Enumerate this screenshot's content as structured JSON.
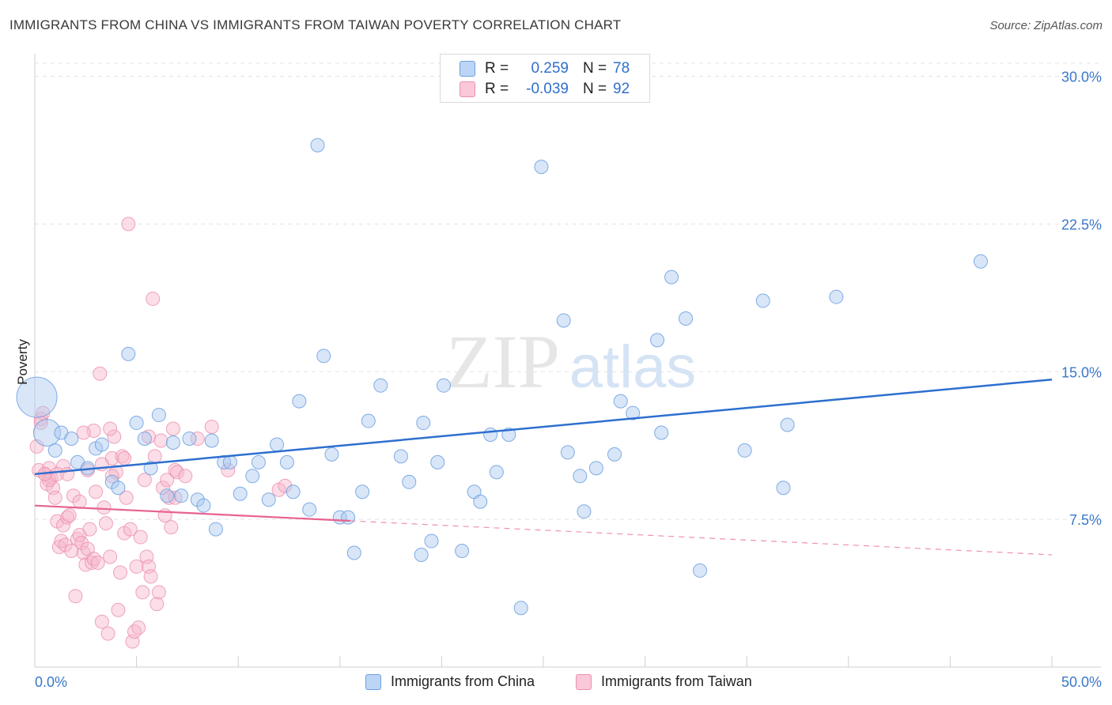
{
  "title": "IMMIGRANTS FROM CHINA VS IMMIGRANTS FROM TAIWAN POVERTY CORRELATION CHART",
  "source": "Source: ZipAtlas.com",
  "watermark": {
    "zip": "ZIP",
    "atlas": "atlas"
  },
  "legend": {
    "rows": [
      {
        "r_label": "R =",
        "r_value": "0.259",
        "n_label": "N =",
        "n_value": "78"
      },
      {
        "r_label": "R =",
        "r_value": "-0.039",
        "n_label": "N =",
        "n_value": "92"
      }
    ]
  },
  "bottom_legend": [
    "Immigrants from China",
    "Immigrants from Taiwan"
  ],
  "colors": {
    "china_fill": "#a9c8f0",
    "china_stroke": "#6c9fe0",
    "china_line": "#2d6fd0",
    "taiwan_fill": "#f6b6ca",
    "taiwan_stroke": "#ec8fae",
    "taiwan_line": "#e8618f",
    "grid": "#e3e3e3",
    "tick_text": "#3b78c9"
  },
  "chart_data": {
    "type": "scatter",
    "ylabel": "Poverty",
    "xlim": [
      0,
      50
    ],
    "ylim": [
      0,
      30
    ],
    "x_tick_labels": [
      "0.0%",
      "50.0%"
    ],
    "y_ticks": [
      7.5,
      15.0,
      22.5,
      30.0
    ],
    "y_tick_labels": [
      "7.5%",
      "15.0%",
      "22.5%",
      "30.0%"
    ],
    "grid": true,
    "series": [
      {
        "name": "Immigrants from China",
        "trend": {
          "x": [
            0,
            50
          ],
          "y": [
            9.8,
            14.6
          ],
          "dashed_after": null
        },
        "points": [
          [
            0.1,
            13.7,
            3
          ],
          [
            0.6,
            11.9,
            2
          ],
          [
            1.0,
            11.0,
            1
          ],
          [
            1.3,
            11.9,
            1
          ],
          [
            1.8,
            11.6,
            1
          ],
          [
            2.1,
            10.4,
            1
          ],
          [
            2.6,
            10.1,
            1
          ],
          [
            3.0,
            11.1,
            1
          ],
          [
            3.3,
            11.3,
            1
          ],
          [
            3.8,
            9.4,
            1
          ],
          [
            4.1,
            9.1,
            1
          ],
          [
            4.6,
            15.9,
            1
          ],
          [
            5.0,
            12.4,
            1
          ],
          [
            5.4,
            11.6,
            1
          ],
          [
            5.7,
            10.1,
            1
          ],
          [
            6.1,
            12.8,
            1
          ],
          [
            6.5,
            8.7,
            1
          ],
          [
            6.8,
            11.4,
            1
          ],
          [
            7.2,
            8.7,
            1
          ],
          [
            7.6,
            11.6,
            1
          ],
          [
            8.0,
            8.5,
            1
          ],
          [
            8.3,
            8.2,
            1
          ],
          [
            8.7,
            11.5,
            1
          ],
          [
            8.9,
            7.0,
            1
          ],
          [
            9.3,
            10.4,
            1
          ],
          [
            9.6,
            10.4,
            1
          ],
          [
            10.1,
            8.8,
            1
          ],
          [
            10.7,
            9.7,
            1
          ],
          [
            11.0,
            10.4,
            1
          ],
          [
            11.5,
            8.5,
            1
          ],
          [
            11.9,
            11.3,
            1
          ],
          [
            12.4,
            10.4,
            1
          ],
          [
            12.7,
            8.9,
            1
          ],
          [
            13.0,
            13.5,
            1
          ],
          [
            13.5,
            8.0,
            1
          ],
          [
            13.9,
            26.5,
            1
          ],
          [
            14.2,
            15.8,
            1
          ],
          [
            14.6,
            10.8,
            1
          ],
          [
            15.0,
            7.6,
            1
          ],
          [
            15.4,
            7.6,
            1
          ],
          [
            15.7,
            5.8,
            1
          ],
          [
            16.1,
            8.9,
            1
          ],
          [
            16.4,
            12.5,
            1
          ],
          [
            17.0,
            14.3,
            1
          ],
          [
            18.0,
            10.7,
            1
          ],
          [
            18.4,
            9.4,
            1
          ],
          [
            19.0,
            5.7,
            1
          ],
          [
            19.1,
            12.4,
            1
          ],
          [
            19.5,
            6.4,
            1
          ],
          [
            19.8,
            10.4,
            1
          ],
          [
            20.1,
            14.3,
            1
          ],
          [
            21.0,
            5.9,
            1
          ],
          [
            21.6,
            8.9,
            1
          ],
          [
            21.9,
            8.4,
            1
          ],
          [
            22.4,
            11.8,
            1
          ],
          [
            22.7,
            9.9,
            1
          ],
          [
            23.3,
            11.8,
            1
          ],
          [
            23.9,
            3.0,
            1
          ],
          [
            24.9,
            25.4,
            1
          ],
          [
            26.0,
            17.6,
            1
          ],
          [
            26.2,
            10.9,
            1
          ],
          [
            26.8,
            9.7,
            1
          ],
          [
            27.0,
            7.9,
            1
          ],
          [
            27.6,
            10.1,
            1
          ],
          [
            28.5,
            10.8,
            1
          ],
          [
            28.8,
            13.5,
            1
          ],
          [
            29.4,
            12.9,
            1
          ],
          [
            30.6,
            16.6,
            1
          ],
          [
            30.8,
            11.9,
            1
          ],
          [
            31.3,
            19.8,
            1
          ],
          [
            32.0,
            17.7,
            1
          ],
          [
            32.7,
            4.9,
            1
          ],
          [
            34.9,
            11.0,
            1
          ],
          [
            35.8,
            18.6,
            1
          ],
          [
            36.8,
            9.1,
            1
          ],
          [
            37.0,
            12.3,
            1
          ],
          [
            39.4,
            18.8,
            1
          ],
          [
            46.5,
            20.6,
            1
          ]
        ]
      },
      {
        "name": "Immigrants from Taiwan",
        "trend": {
          "x": [
            0,
            50
          ],
          "y": [
            8.2,
            5.7
          ],
          "dashed_after": 15.5
        },
        "points": [
          [
            0.1,
            11.2,
            1
          ],
          [
            0.2,
            10.0,
            1
          ],
          [
            0.3,
            12.6,
            1
          ],
          [
            0.4,
            12.9,
            1
          ],
          [
            0.5,
            9.8,
            1
          ],
          [
            0.6,
            9.3,
            1
          ],
          [
            0.7,
            10.1,
            1
          ],
          [
            0.8,
            9.6,
            1
          ],
          [
            0.9,
            9.1,
            1
          ],
          [
            1.0,
            8.6,
            1
          ],
          [
            1.1,
            7.4,
            1
          ],
          [
            1.2,
            6.1,
            1
          ],
          [
            1.3,
            6.4,
            1
          ],
          [
            1.4,
            7.2,
            1
          ],
          [
            1.5,
            6.2,
            1
          ],
          [
            1.6,
            7.6,
            1
          ],
          [
            1.7,
            7.7,
            1
          ],
          [
            1.8,
            5.9,
            1
          ],
          [
            1.9,
            8.7,
            1
          ],
          [
            2.0,
            3.6,
            1
          ],
          [
            2.1,
            6.5,
            1
          ],
          [
            2.2,
            6.7,
            1
          ],
          [
            2.3,
            6.3,
            1
          ],
          [
            2.4,
            5.8,
            1
          ],
          [
            2.5,
            5.2,
            1
          ],
          [
            2.6,
            6.0,
            1
          ],
          [
            2.7,
            7.0,
            1
          ],
          [
            2.8,
            5.3,
            1
          ],
          [
            2.9,
            5.5,
            1
          ],
          [
            3.0,
            8.9,
            1
          ],
          [
            3.1,
            5.3,
            1
          ],
          [
            3.2,
            14.9,
            1
          ],
          [
            3.3,
            2.3,
            1
          ],
          [
            3.4,
            8.1,
            1
          ],
          [
            3.5,
            7.3,
            1
          ],
          [
            3.6,
            1.7,
            1
          ],
          [
            3.7,
            5.6,
            1
          ],
          [
            3.8,
            10.6,
            1
          ],
          [
            3.9,
            11.7,
            1
          ],
          [
            4.0,
            9.9,
            1
          ],
          [
            4.1,
            2.9,
            1
          ],
          [
            4.2,
            4.8,
            1
          ],
          [
            4.3,
            10.7,
            1
          ],
          [
            4.4,
            6.8,
            1
          ],
          [
            4.5,
            8.6,
            1
          ],
          [
            4.6,
            22.5,
            1
          ],
          [
            4.7,
            7.0,
            1
          ],
          [
            4.8,
            1.3,
            1
          ],
          [
            4.9,
            1.8,
            1
          ],
          [
            5.0,
            5.1,
            1
          ],
          [
            5.1,
            2.0,
            1
          ],
          [
            5.2,
            6.6,
            1
          ],
          [
            5.3,
            3.8,
            1
          ],
          [
            5.4,
            9.5,
            1
          ],
          [
            5.5,
            5.6,
            1
          ],
          [
            5.6,
            5.1,
            1
          ],
          [
            5.7,
            4.6,
            1
          ],
          [
            5.8,
            18.7,
            1
          ],
          [
            5.9,
            10.7,
            1
          ],
          [
            6.0,
            3.2,
            1
          ],
          [
            6.1,
            3.8,
            1
          ],
          [
            6.2,
            11.5,
            1
          ],
          [
            6.3,
            9.1,
            1
          ],
          [
            6.4,
            7.7,
            1
          ],
          [
            6.5,
            9.5,
            1
          ],
          [
            6.6,
            8.6,
            1
          ],
          [
            6.7,
            7.1,
            1
          ],
          [
            6.8,
            12.1,
            1
          ],
          [
            6.9,
            10.0,
            1
          ],
          [
            7.0,
            9.9,
            1
          ],
          [
            0.3,
            12.4,
            1
          ],
          [
            0.7,
            9.5,
            1
          ],
          [
            1.4,
            10.2,
            1
          ],
          [
            2.2,
            8.4,
            1
          ],
          [
            2.9,
            12.0,
            1
          ],
          [
            3.3,
            10.3,
            1
          ],
          [
            3.7,
            12.1,
            1
          ],
          [
            0.5,
            9.8,
            1
          ],
          [
            1.1,
            9.8,
            1
          ],
          [
            1.6,
            9.8,
            1
          ],
          [
            2.4,
            11.9,
            1
          ],
          [
            2.6,
            10.0,
            1
          ],
          [
            3.8,
            9.7,
            1
          ],
          [
            4.4,
            10.6,
            1
          ],
          [
            5.6,
            11.7,
            1
          ],
          [
            6.9,
            8.6,
            1
          ],
          [
            7.4,
            9.7,
            1
          ],
          [
            8.0,
            11.6,
            1
          ],
          [
            8.7,
            12.2,
            1
          ],
          [
            9.5,
            10.0,
            1
          ],
          [
            12.0,
            9.0,
            1
          ],
          [
            12.3,
            9.2,
            1
          ]
        ]
      }
    ]
  }
}
